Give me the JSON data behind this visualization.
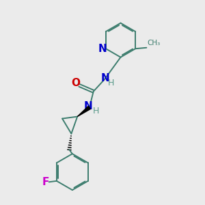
{
  "background_color": "#ebebeb",
  "bond_color": "#3d7d6e",
  "n_color": "#0000cc",
  "o_color": "#cc0000",
  "f_color": "#cc00cc",
  "h_color": "#5a9a8a",
  "figsize": [
    3.0,
    3.0
  ],
  "dpi": 100,
  "xlim": [
    0,
    10
  ],
  "ylim": [
    0,
    10
  ]
}
